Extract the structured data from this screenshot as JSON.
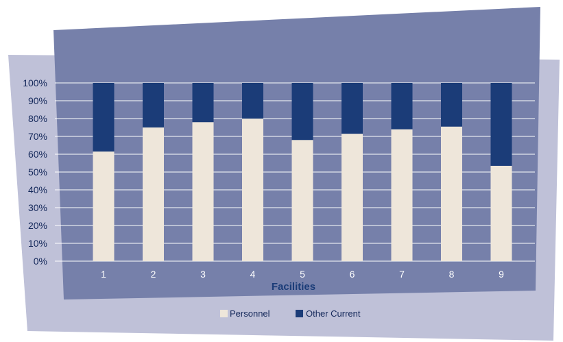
{
  "chart_data": {
    "type": "bar",
    "stacked": true,
    "percent_stacked": true,
    "title": "",
    "xlabel": "Facilities",
    "ylabel": "",
    "categories": [
      "1",
      "2",
      "3",
      "4",
      "5",
      "6",
      "7",
      "8",
      "9"
    ],
    "series": [
      {
        "name": "Personnel",
        "values": [
          61.5,
          75,
          78,
          80,
          68,
          71.5,
          74,
          75.5,
          53.5
        ]
      },
      {
        "name": "Other Current",
        "values": [
          38.5,
          25,
          22,
          20,
          32,
          28.5,
          26,
          24.5,
          46.5
        ]
      }
    ],
    "ylim": [
      0,
      100
    ],
    "yticks": [
      "0%",
      "10%",
      "20%",
      "30%",
      "40%",
      "50%",
      "60%",
      "70%",
      "80%",
      "90%",
      "100%"
    ],
    "grid": true,
    "legend_position": "bottom-center"
  },
  "colors": {
    "personnel": "#EEE6DA",
    "other_current": "#1B3C78",
    "plot_background": "#7680AA",
    "back_panel": "#BFC1D8",
    "gridline": "#FFFFFF",
    "tick_text": "#14285A",
    "axis_title": "#1B3C78"
  }
}
